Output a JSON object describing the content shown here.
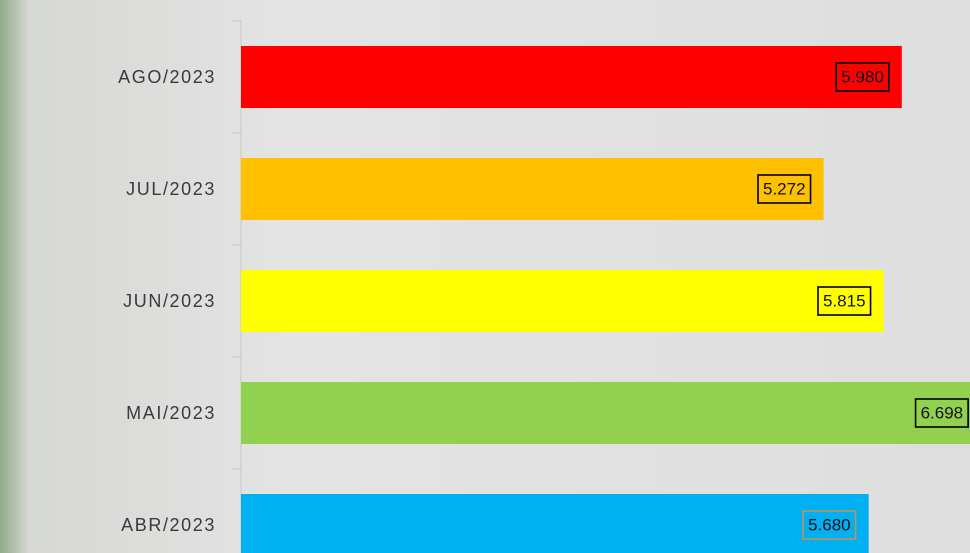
{
  "chart_data": {
    "type": "barh",
    "categories": [
      "AGO/2023",
      "JUL/2023",
      "JUN/2023",
      "MAI/2023",
      "ABR/2023"
    ],
    "values": [
      5980,
      5272,
      5815,
      6698,
      5680
    ],
    "value_labels": [
      "5.980",
      "5.272",
      "5.815",
      "6.698",
      "5.680"
    ],
    "colors": [
      "#ff0000",
      "#ffc000",
      "#ffff00",
      "#92d050",
      "#00b0f0"
    ],
    "label_borders": [
      "#000000",
      "#000000",
      "#000000",
      "#000000",
      "#c0935a"
    ],
    "xlim": [
      0,
      6000
    ]
  }
}
